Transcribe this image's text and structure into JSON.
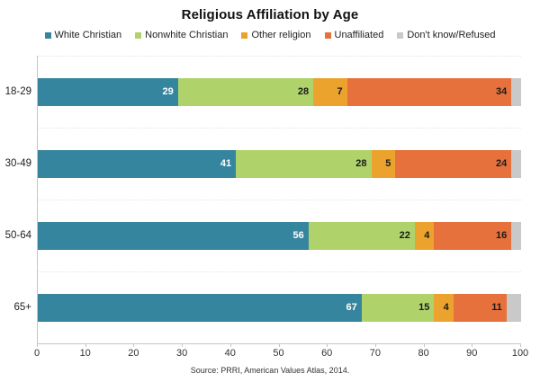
{
  "title": "Religious Affiliation by Age",
  "source": "Source: PRRI, American Values Atlas, 2014.",
  "chart_data": {
    "type": "bar",
    "orientation": "horizontal-stacked",
    "title": "Religious Affiliation by Age",
    "categories": [
      "18-29",
      "30-49",
      "50-64",
      "65+"
    ],
    "series": [
      {
        "name": "White Christian",
        "color": "#36859E",
        "label_color": "#ffffff",
        "show_labels": true,
        "values": [
          29,
          41,
          56,
          67
        ]
      },
      {
        "name": "Nonwhite Christian",
        "color": "#AFD36A",
        "label_color": "#1a1a1a",
        "show_labels": true,
        "values": [
          28,
          28,
          22,
          15
        ]
      },
      {
        "name": "Other religion",
        "color": "#EBA32D",
        "label_color": "#1a1a1a",
        "show_labels": true,
        "values": [
          7,
          5,
          4,
          4
        ]
      },
      {
        "name": "Unaffiliated",
        "color": "#E7713C",
        "label_color": "#1a1a1a",
        "show_labels": true,
        "values": [
          34,
          24,
          16,
          11
        ]
      },
      {
        "name": "Don't know/Refused",
        "color": "#C9C9C9",
        "label_color": "#1a1a1a",
        "show_labels": false,
        "values": [
          2,
          2,
          2,
          3
        ]
      }
    ],
    "xlim": [
      0,
      100
    ],
    "x_ticks": [
      0,
      10,
      20,
      30,
      40,
      50,
      60,
      70,
      80,
      90,
      100
    ],
    "legend_position": "top",
    "grid": "horizontal-dotted-band-boundaries",
    "annotation": "Source: PRRI, American Values Atlas, 2014."
  },
  "layout_colors": {
    "axis_line": "#c6c6c6",
    "gridline": "#e4e4e4",
    "title_text": "#111111",
    "tick_text": "#333333"
  }
}
